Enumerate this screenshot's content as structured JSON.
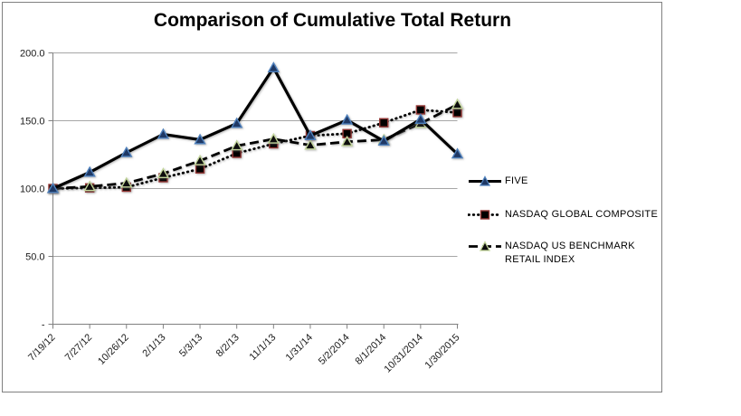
{
  "window": {
    "background": "#ffffff",
    "frame_border_color": "#808080"
  },
  "chart_data": {
    "type": "line",
    "title": "Comparison of Cumulative Total Return",
    "categories": [
      "7/19/12",
      "7/27/12",
      "10/26/12",
      "2/1/13",
      "5/3/13",
      "8/2/13",
      "11/1/13",
      "1/31/14",
      "5/2/2014",
      "8/1/2014",
      "10/31/2014",
      "1/30/2015"
    ],
    "series": [
      {
        "name": "FIVE",
        "values": [
          100.0,
          112.0,
          126.5,
          140.0,
          136.0,
          148.0,
          189.0,
          139.0,
          150.5,
          135.0,
          151.0,
          125.5
        ],
        "line": {
          "style": "solid",
          "color": "#000000",
          "width": 3.2
        },
        "marker": {
          "shape": "triangle",
          "fill": "#1F3864",
          "edge": "#4F81BD"
        }
      },
      {
        "name": "NASDAQ GLOBAL COMPOSITE",
        "values": [
          100.0,
          100.5,
          101.0,
          108.0,
          114.5,
          126.0,
          133.0,
          139.0,
          140.5,
          148.5,
          158.0,
          156.0
        ],
        "line": {
          "style": "dotted",
          "color": "#000000",
          "width": 2.8
        },
        "marker": {
          "shape": "square",
          "fill": "#000000",
          "edge": "#953735"
        }
      },
      {
        "name": "NASDAQ US BENCHMARK RETAIL INDEX",
        "values": [
          100.0,
          101.5,
          104.0,
          111.0,
          120.5,
          131.5,
          136.5,
          132.0,
          134.5,
          136.0,
          148.0,
          162.0
        ],
        "line": {
          "style": "dashed",
          "color": "#000000",
          "width": 2.8
        },
        "marker": {
          "shape": "triangle",
          "fill": "#0d0d0d",
          "edge": "#C3D69B"
        }
      }
    ],
    "y_axis": {
      "range": [
        0,
        200
      ],
      "ticks": [
        {
          "value": 0,
          "label": "-"
        },
        {
          "value": 50,
          "label": "50.0"
        },
        {
          "value": 100,
          "label": "100.0"
        },
        {
          "value": 150,
          "label": "150.0"
        },
        {
          "value": 200,
          "label": "200.0"
        }
      ]
    },
    "grid": true,
    "gridline_color": "#A6A6A6",
    "axis_color": "#808080",
    "legend_position": "right"
  }
}
